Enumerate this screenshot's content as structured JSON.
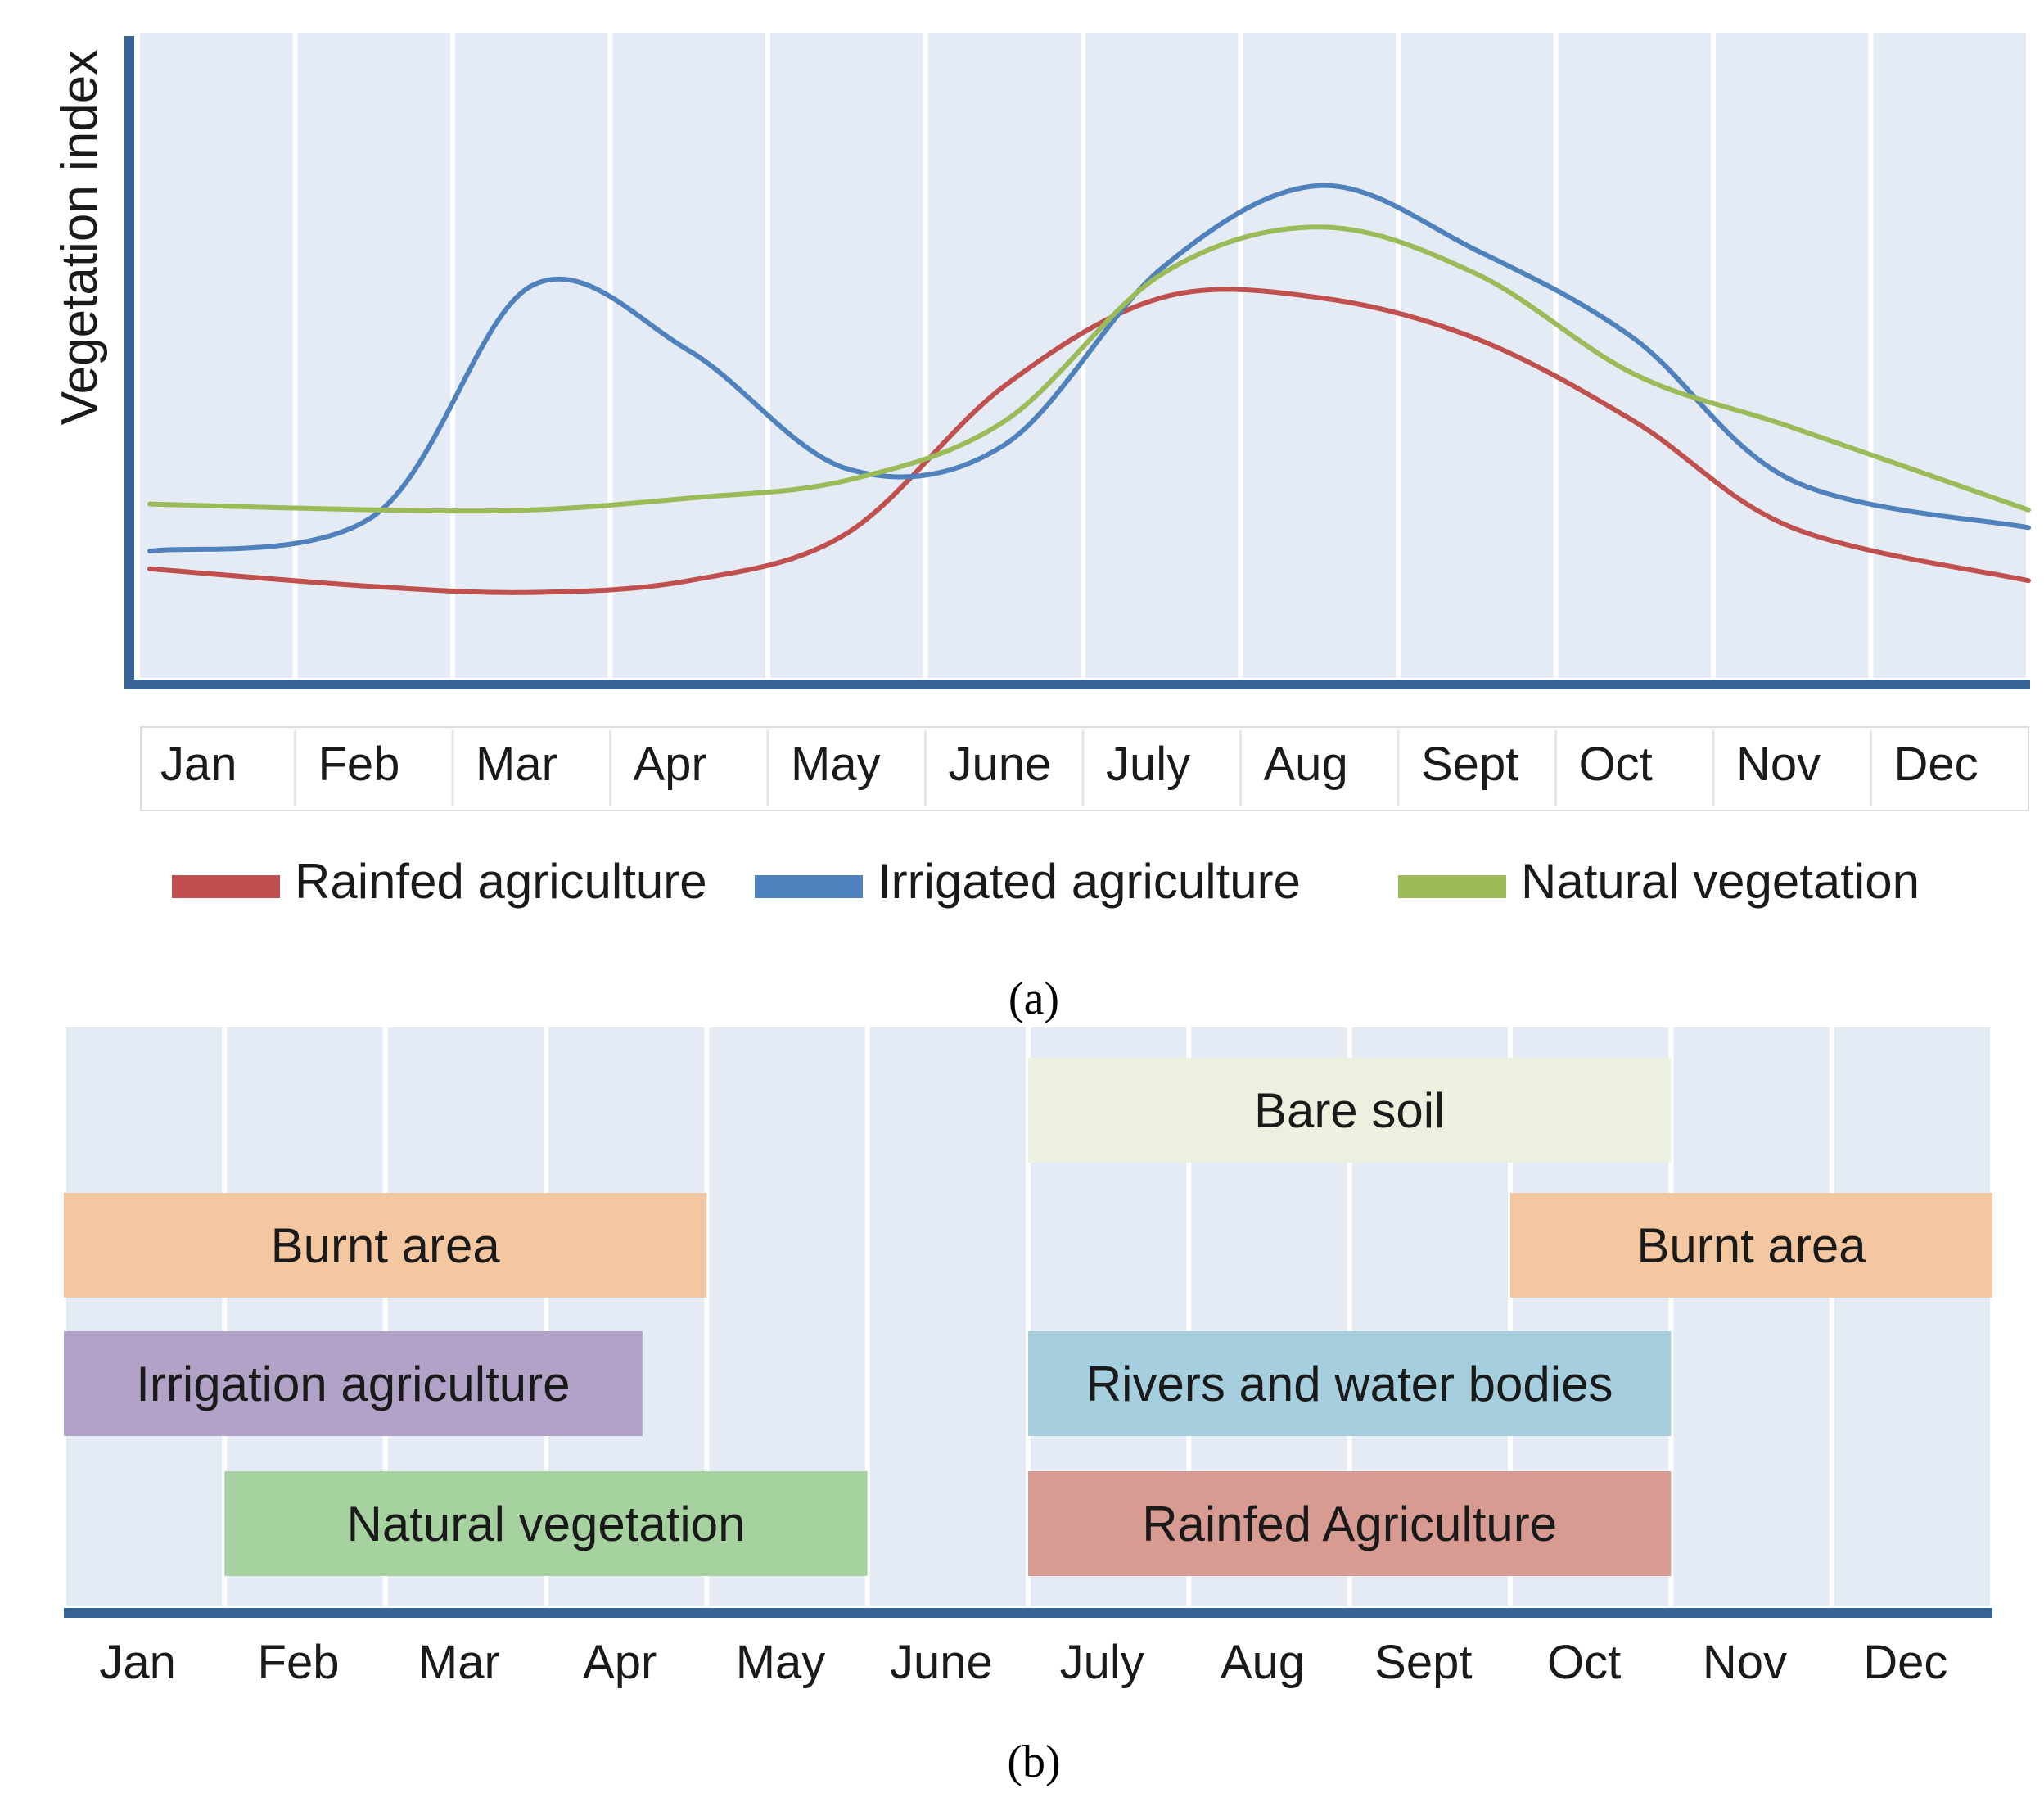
{
  "chart_data": [
    {
      "type": "line",
      "panel_label": "a",
      "ylabel": "Vegetation index",
      "categories": [
        "Jan",
        "Feb",
        "Mar",
        "Apr",
        "May",
        "June",
        "July",
        "Aug",
        "Sept",
        "Oct",
        "Nov",
        "Dec"
      ],
      "ylim": [
        0,
        100
      ],
      "grid": "vertical bands",
      "legend_position": "bottom",
      "series": [
        {
          "name": "Rainfed agriculture",
          "color": "#c0504d",
          "values": [
            16,
            13,
            12,
            14,
            22,
            47,
            62,
            62,
            55,
            41,
            23,
            14
          ]
        },
        {
          "name": "Irrigated agriculture",
          "color": "#4f81bd",
          "values": [
            19,
            25,
            64,
            53,
            33,
            37,
            67,
            81,
            70,
            55,
            31,
            23
          ]
        },
        {
          "name": "Natural vegetation",
          "color": "#9bbb59",
          "values": [
            27,
            26,
            26,
            28,
            31,
            41,
            66,
            74,
            66,
            49,
            40,
            26
          ]
        }
      ]
    },
    {
      "type": "bar",
      "subtype": "timeline",
      "panel_label": "b",
      "categories": [
        "Jan",
        "Feb",
        "Mar",
        "Apr",
        "May",
        "June",
        "July",
        "Aug",
        "Sept",
        "Oct",
        "Nov",
        "Dec"
      ],
      "bars": [
        {
          "label": "Bare soil",
          "start": 6,
          "end": 10,
          "row": 0,
          "color": "#ebf1de"
        },
        {
          "label": "Burnt area",
          "start": 0,
          "end": 4,
          "row": 1,
          "color": "#f4c7a1"
        },
        {
          "label": "Burnt area",
          "start": 9,
          "end": 12,
          "row": 1,
          "color": "#f4c7a1"
        },
        {
          "label": "Irrigation agriculture",
          "start": 0,
          "end": 3.6,
          "row": 2,
          "color": "#b3a2c7"
        },
        {
          "label": "Rivers and water bodies",
          "start": 6,
          "end": 10,
          "row": 2,
          "color": "#a5cfde"
        },
        {
          "label": "Natural vegetation",
          "start": 1,
          "end": 5,
          "row": 3,
          "color": "#a6d2a0"
        },
        {
          "label": "Rainfed Agriculture",
          "start": 6,
          "end": 10,
          "row": 3,
          "color": "#d89b92"
        }
      ]
    }
  ],
  "captions": {
    "a": "(a)",
    "b": "(b)"
  },
  "colors": {
    "band": "#e4ebf5",
    "axis": "#3a6496"
  }
}
